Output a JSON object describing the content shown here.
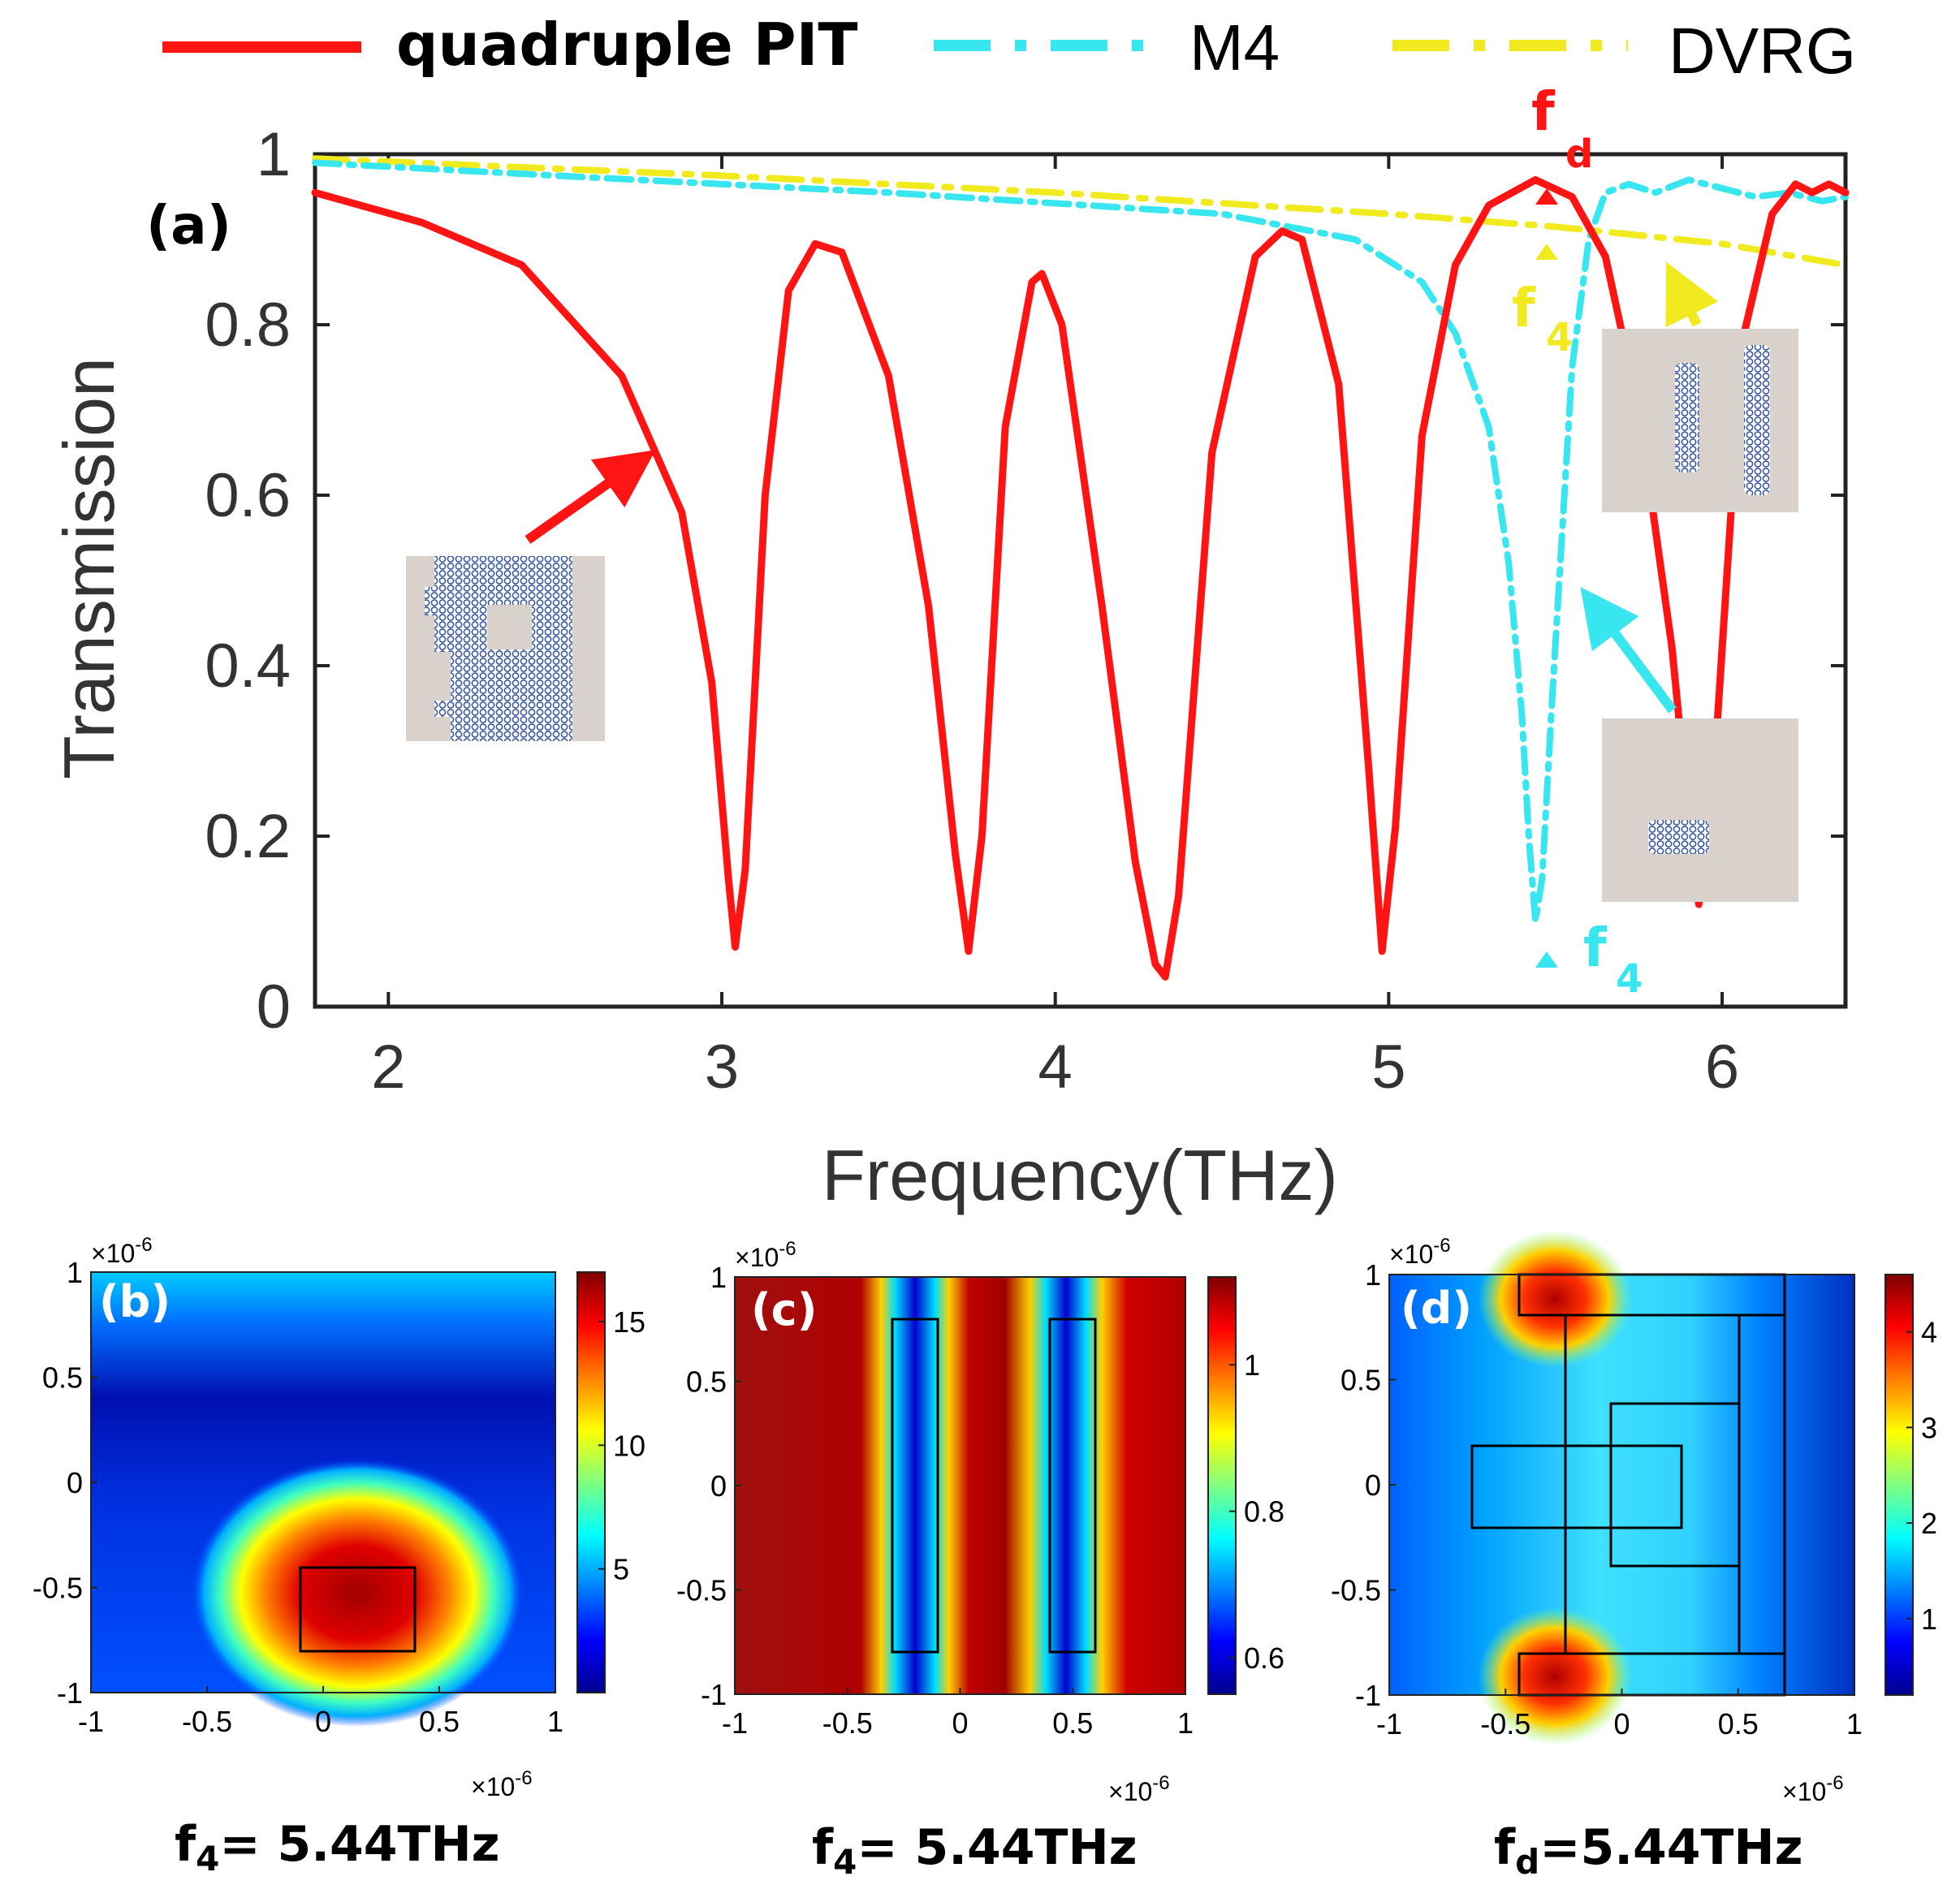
{
  "legend": [
    {
      "label": "quadruple PIT",
      "color": "#ff1414",
      "style": "solid"
    },
    {
      "label": "M4",
      "color": "#38e6f0",
      "style": "dash-dot"
    },
    {
      "label": "DVRG",
      "color": "#f0ea1e",
      "style": "dash-dot"
    }
  ],
  "colors": {
    "pit": "#ff1414",
    "m4": "#38e6f0",
    "dvrg": "#f0ea1e",
    "structure": "#3c5aa0",
    "inset_bg": "#d9d2cc"
  },
  "chart_data": [
    {
      "type": "line",
      "panel_label": "(a)",
      "xlabel": "Frequency(THz)",
      "ylabel": "Transmission",
      "xlim": [
        1.78,
        6.37
      ],
      "ylim": [
        0,
        1
      ],
      "xticks": [
        "2",
        "3",
        "4",
        "5",
        "6"
      ],
      "yticks": [
        "0",
        "0.2",
        "0.4",
        "0.6",
        "0.8",
        "1"
      ],
      "legend_position": "top",
      "series": [
        {
          "name": "quadruple PIT",
          "color": "#ff1414",
          "x": [
            1.78,
            2.1,
            2.4,
            2.7,
            2.88,
            2.97,
            3.02,
            3.04,
            3.07,
            3.13,
            3.2,
            3.28,
            3.36,
            3.5,
            3.62,
            3.7,
            3.74,
            3.78,
            3.85,
            3.93,
            3.96,
            4.02,
            4.14,
            4.24,
            4.3,
            4.33,
            4.37,
            4.47,
            4.6,
            4.68,
            4.74,
            4.85,
            4.94,
            4.98,
            5.02,
            5.1,
            5.2,
            5.3,
            5.44,
            5.55,
            5.65,
            5.75,
            5.85,
            5.91,
            5.93,
            5.97,
            6.06,
            6.15,
            6.22,
            6.27,
            6.32,
            6.37
          ],
          "y": [
            0.955,
            0.92,
            0.87,
            0.74,
            0.58,
            0.38,
            0.15,
            0.07,
            0.16,
            0.6,
            0.84,
            0.895,
            0.885,
            0.74,
            0.47,
            0.18,
            0.065,
            0.2,
            0.68,
            0.85,
            0.86,
            0.8,
            0.47,
            0.17,
            0.05,
            0.035,
            0.13,
            0.65,
            0.88,
            0.91,
            0.9,
            0.73,
            0.28,
            0.065,
            0.21,
            0.67,
            0.87,
            0.94,
            0.97,
            0.95,
            0.88,
            0.7,
            0.42,
            0.18,
            0.12,
            0.24,
            0.78,
            0.93,
            0.965,
            0.955,
            0.965,
            0.955
          ]
        },
        {
          "name": "M4",
          "color": "#38e6f0",
          "x": [
            1.78,
            2.5,
            3.5,
            4.5,
            4.9,
            5.1,
            5.2,
            5.3,
            5.36,
            5.4,
            5.42,
            5.44,
            5.46,
            5.49,
            5.55,
            5.6,
            5.65,
            5.72,
            5.8,
            5.9,
            6.0,
            6.1,
            6.2,
            6.3,
            6.37
          ],
          "y": [
            0.99,
            0.975,
            0.955,
            0.93,
            0.9,
            0.85,
            0.79,
            0.68,
            0.52,
            0.34,
            0.2,
            0.1,
            0.15,
            0.36,
            0.75,
            0.9,
            0.955,
            0.965,
            0.955,
            0.97,
            0.96,
            0.95,
            0.955,
            0.945,
            0.95
          ]
        },
        {
          "name": "DVRG",
          "color": "#f0ea1e",
          "x": [
            1.78,
            3.0,
            4.0,
            5.0,
            5.5,
            6.0,
            6.37
          ],
          "y": [
            0.995,
            0.975,
            0.955,
            0.93,
            0.915,
            0.895,
            0.87
          ]
        }
      ],
      "annotations": [
        {
          "text": "f",
          "sub": "d",
          "color": "#ff1414",
          "x": 5.44,
          "y": 0.96
        },
        {
          "text": "f",
          "sub": "4",
          "color": "#f0ea1e",
          "x": 5.44,
          "y": 0.88
        },
        {
          "text": "f",
          "sub": "4",
          "color": "#38e6f0",
          "x": 5.44,
          "y": 0.07
        }
      ]
    },
    {
      "type": "heatmap",
      "panel_label": "(b)",
      "caption_main": "f",
      "caption_sub": "4",
      "caption_rest": "= 5.44THz",
      "xlim": [
        -1,
        1
      ],
      "ylim": [
        -1,
        1
      ],
      "xticks": [
        "-1",
        "-0.5",
        "0",
        "0.5",
        "1"
      ],
      "yticks": [
        "-1",
        "-0.5",
        "0",
        "0.5",
        "1"
      ],
      "scale_label": "×10",
      "scale_exp": "-6",
      "colorbar": {
        "min": 0,
        "max": 17,
        "ticks": [
          "5",
          "10",
          "15"
        ],
        "tick_values": [
          5,
          10,
          15
        ]
      }
    },
    {
      "type": "heatmap",
      "panel_label": "(c)",
      "caption_main": "f",
      "caption_sub": "4",
      "caption_rest": "= 5.44THz",
      "xlim": [
        -1,
        1
      ],
      "ylim": [
        -1,
        1
      ],
      "xticks": [
        "-1",
        "-0.5",
        "0",
        "0.5",
        "1"
      ],
      "yticks": [
        "-1",
        "-0.5",
        "0",
        "0.5",
        "1"
      ],
      "scale_label": "×10",
      "scale_exp": "-6",
      "colorbar": {
        "min": 0.55,
        "max": 1.12,
        "ticks": [
          "0.6",
          "0.8",
          "1"
        ],
        "tick_values": [
          0.6,
          0.8,
          1.0
        ]
      }
    },
    {
      "type": "heatmap",
      "panel_label": "(d)",
      "caption_main": "f",
      "caption_sub": "d",
      "caption_rest": "=5.44THz",
      "xlim": [
        -1,
        1
      ],
      "ylim": [
        -1,
        1
      ],
      "xticks": [
        "-1",
        "-0.5",
        "0",
        "0.5",
        "1"
      ],
      "yticks": [
        "-1",
        "-0.5",
        "0",
        "0.5",
        "1"
      ],
      "scale_label": "×10",
      "scale_exp": "-6",
      "colorbar": {
        "min": 0.2,
        "max": 4.6,
        "ticks": [
          "1",
          "2",
          "3",
          "4"
        ],
        "tick_values": [
          1,
          2,
          3,
          4
        ]
      }
    }
  ]
}
